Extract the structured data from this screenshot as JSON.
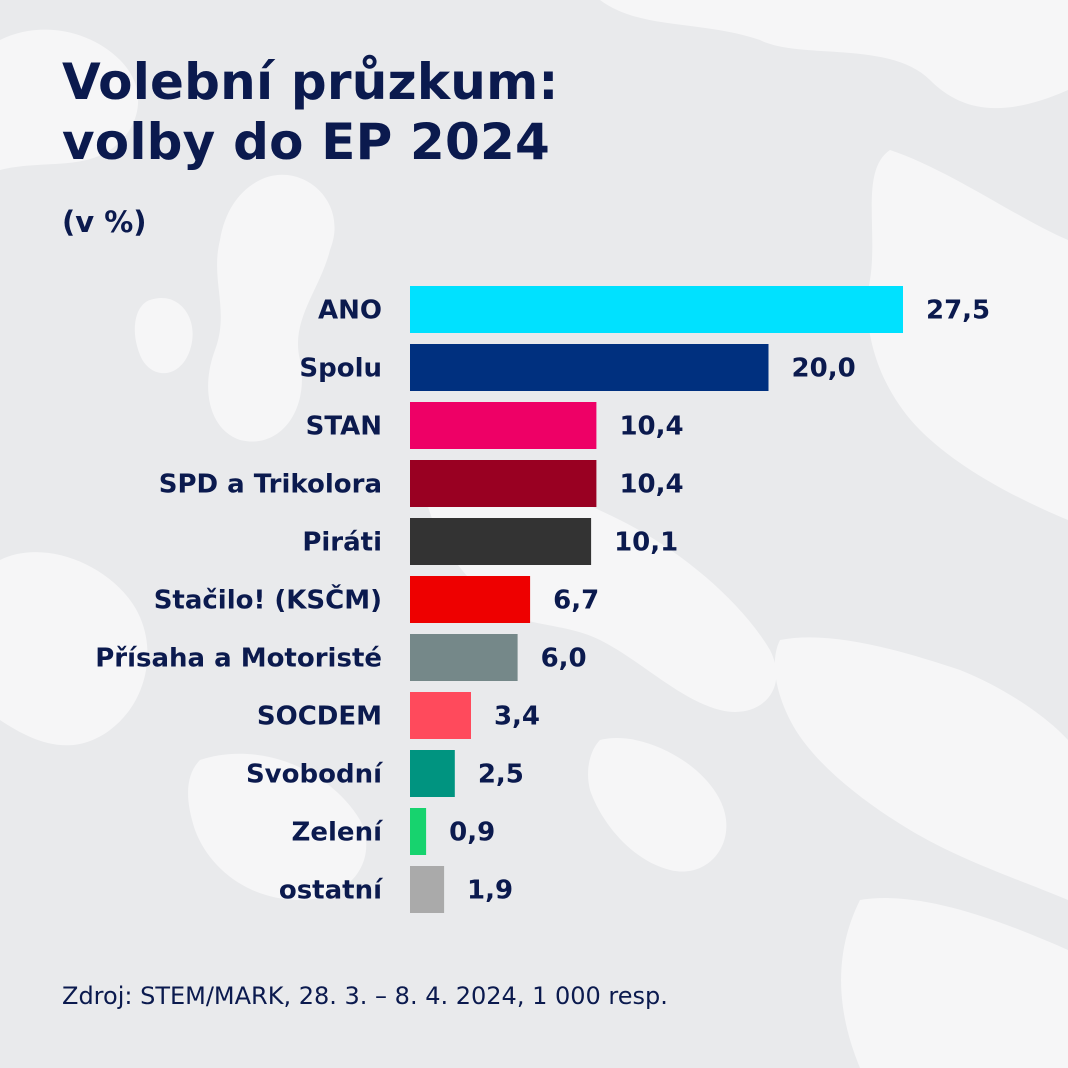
{
  "chart_data": {
    "type": "bar",
    "orientation": "horizontal",
    "title_lines": [
      "Volební průzkum:",
      "volby do EP 2024"
    ],
    "subtitle": "(v %)",
    "categories": [
      "ANO",
      "Spolu",
      "STAN",
      "SPD a Trikolora",
      "Piráti",
      "Stačilo! (KSČM)",
      "Přísaha a Motoristé",
      "SOCDEM",
      "Svobodní",
      "Zelení",
      "ostatní"
    ],
    "values": [
      27.5,
      20.0,
      10.4,
      10.4,
      10.1,
      6.7,
      6.0,
      3.4,
      2.5,
      0.9,
      1.9
    ],
    "value_labels": [
      "27,5",
      "20,0",
      "10,4",
      "10,4",
      "10,1",
      "6,7",
      "6,0",
      "3,4",
      "2,5",
      "0,9",
      "1,9"
    ],
    "colors": [
      "#00e1ff",
      "#00307f",
      "#ee0066",
      "#990022",
      "#333333",
      "#ee0000",
      "#758889",
      "#ff4a5c",
      "#009480",
      "#17d36e",
      "#aaaaaa"
    ],
    "xlim": [
      0,
      27.5
    ],
    "grid": false,
    "legend": "none",
    "source": "Zdroj: STEM/MARK, 28. 3. – 8. 4. 2024, 1 000 resp."
  }
}
